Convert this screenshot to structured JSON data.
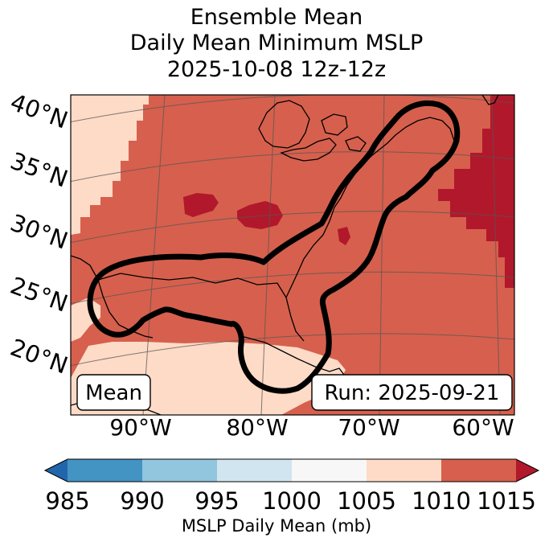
{
  "title": {
    "line1": "Ensemble Mean",
    "line2": "Daily Mean Minimum MSLP",
    "line3": "2025-10-08 12z-12z"
  },
  "map": {
    "lat_labels": [
      "40°N",
      "35°N",
      "30°N",
      "25°N",
      "20°N"
    ],
    "lon_labels": [
      "90°W",
      "80°W",
      "70°W",
      "60°W"
    ],
    "mean_box": "Mean",
    "run_box": "Run: 2025-09-21"
  },
  "colorbar": {
    "ticks": [
      "985",
      "990",
      "995",
      "1000",
      "1005",
      "1010",
      "1015"
    ],
    "label": "MSLP Daily Mean (mb)",
    "bins": [
      {
        "range": "<985",
        "color": "#2166ac"
      },
      {
        "range": "985-990",
        "color": "#4393c3"
      },
      {
        "range": "990-995",
        "color": "#92c5de"
      },
      {
        "range": "995-1000",
        "color": "#d1e5f0"
      },
      {
        "range": "1000-1005",
        "color": "#f7f7f7"
      },
      {
        "range": "1005-1010",
        "color": "#fddbc7"
      },
      {
        "range": "1010-1015",
        "color": "#d6604d"
      },
      {
        "range": ">1015",
        "color": "#b2182b"
      }
    ]
  }
}
